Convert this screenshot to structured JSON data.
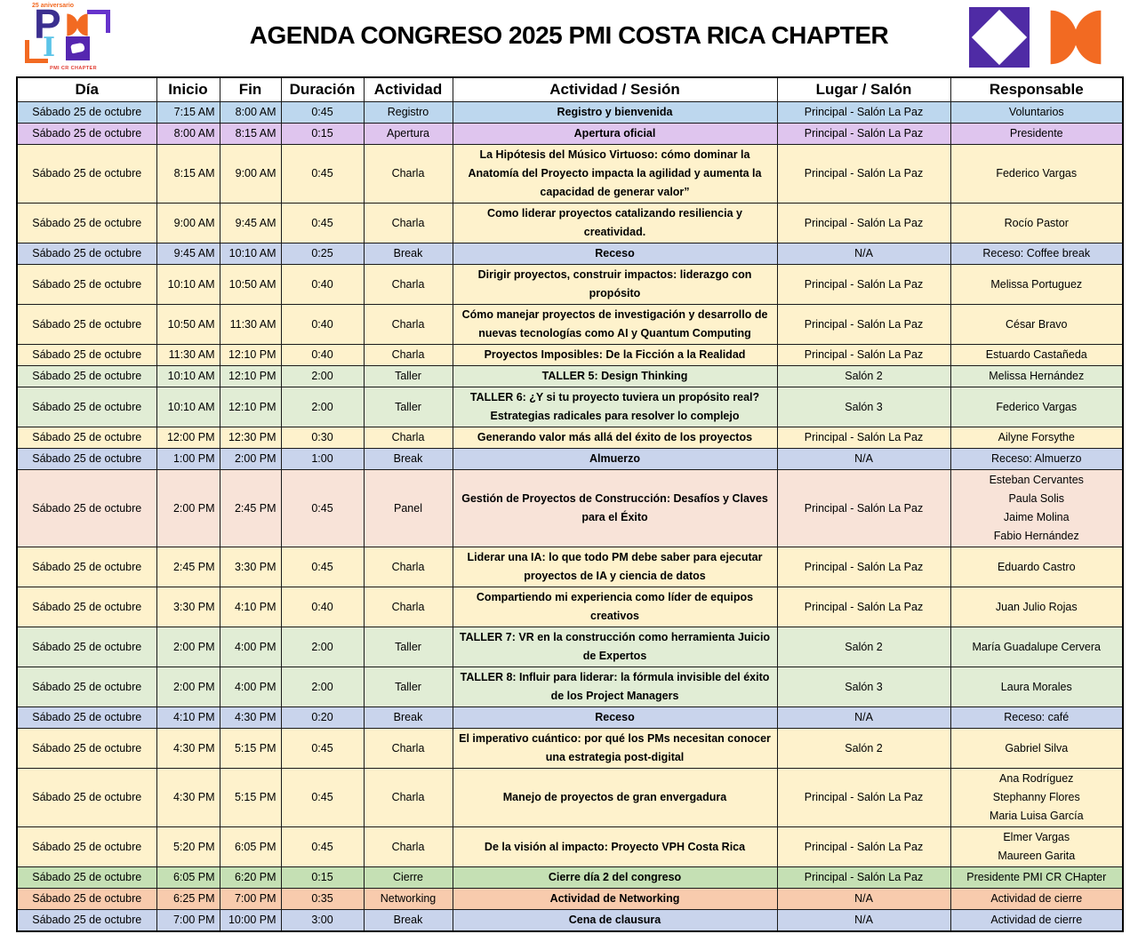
{
  "header": {
    "title": "AGENDA CONGRESO 2025 PMI COSTA RICA CHAPTER",
    "logo_left": {
      "anniversary": "25 aniversario",
      "letter_p": "P",
      "letter_i": "I",
      "chapter": "PMI CR CHAPTER"
    },
    "colors": {
      "brand_purple": "#4F2BA5",
      "brand_orange": "#F26A22"
    }
  },
  "table": {
    "columns": [
      "Día",
      "Inicio",
      "Fin",
      "Duración",
      "Actividad",
      "Actividad / Sesión",
      "Lugar / Salón",
      "Responsable"
    ],
    "row_colors": {
      "registro": "#BDD7EE",
      "apertura": "#DFC5EE",
      "charla": "#FEF2CC",
      "break": "#C9D4EC",
      "taller": "#E1EDD5",
      "panel": "#F8E3D8",
      "cierre": "#C5E0B4",
      "networking": "#F8CBAD"
    },
    "rows": [
      {
        "dia": "Sábado 25 de octubre",
        "inicio": "7:15 AM",
        "fin": "8:00 AM",
        "duracion": "0:45",
        "actividad": "Registro",
        "sesion": "Registro y bienvenida",
        "lugar": "Principal - Salón La Paz",
        "responsable": "Voluntarios",
        "tipo": "registro"
      },
      {
        "dia": "Sábado 25 de octubre",
        "inicio": "8:00 AM",
        "fin": "8:15 AM",
        "duracion": "0:15",
        "actividad": "Apertura",
        "sesion": "Apertura oficial",
        "lugar": "Principal - Salón La Paz",
        "responsable": "Presidente",
        "tipo": "apertura"
      },
      {
        "dia": "Sábado 25 de octubre",
        "inicio": "8:15 AM",
        "fin": "9:00 AM",
        "duracion": "0:45",
        "actividad": "Charla",
        "sesion": "La Hipótesis del Músico Virtuoso: cómo dominar la Anatomía del Proyecto impacta la agilidad y aumenta la capacidad de generar valor”",
        "lugar": "Principal - Salón La Paz",
        "responsable": "Federico Vargas",
        "tipo": "charla"
      },
      {
        "dia": "Sábado 25 de octubre",
        "inicio": "9:00 AM",
        "fin": "9:45 AM",
        "duracion": "0:45",
        "actividad": "Charla",
        "sesion": "Como liderar proyectos catalizando resiliencia y creatividad.",
        "lugar": "Principal - Salón La Paz",
        "responsable": "Rocío Pastor",
        "tipo": "charla"
      },
      {
        "dia": "Sábado 25 de octubre",
        "inicio": "9:45 AM",
        "fin": "10:10 AM",
        "duracion": "0:25",
        "actividad": "Break",
        "sesion": "Receso",
        "lugar": "N/A",
        "responsable": "Receso: Coffee break",
        "tipo": "break"
      },
      {
        "dia": "Sábado 25 de octubre",
        "inicio": "10:10 AM",
        "fin": "10:50 AM",
        "duracion": "0:40",
        "actividad": "Charla",
        "sesion": "Dirigir proyectos, construir impactos: liderazgo con propósito",
        "lugar": "Principal - Salón La Paz",
        "responsable": "Melissa Portuguez",
        "tipo": "charla"
      },
      {
        "dia": "Sábado 25 de octubre",
        "inicio": "10:50 AM",
        "fin": "11:30 AM",
        "duracion": "0:40",
        "actividad": "Charla",
        "sesion": "Cómo manejar proyectos de investigación y desarrollo de nuevas tecnologías como AI y Quantum Computing",
        "lugar": "Principal - Salón La Paz",
        "responsable": "César Bravo",
        "tipo": "charla"
      },
      {
        "dia": "Sábado 25 de octubre",
        "inicio": "11:30 AM",
        "fin": "12:10 PM",
        "duracion": "0:40",
        "actividad": "Charla",
        "sesion": "Proyectos Imposibles: De la Ficción a la Realidad",
        "lugar": "Principal - Salón La Paz",
        "responsable": "Estuardo Castañeda",
        "tipo": "charla"
      },
      {
        "dia": "Sábado 25 de octubre",
        "inicio": "10:10 AM",
        "fin": "12:10 PM",
        "duracion": "2:00",
        "actividad": "Taller",
        "sesion": "TALLER 5: Design Thinking",
        "lugar": "Salón 2",
        "responsable": "Melissa Hernández",
        "tipo": "taller"
      },
      {
        "dia": "Sábado 25 de octubre",
        "inicio": "10:10 AM",
        "fin": "12:10 PM",
        "duracion": "2:00",
        "actividad": "Taller",
        "sesion": "TALLER 6: ¿Y si tu proyecto tuviera un propósito real? Estrategias radicales para resolver lo complejo",
        "lugar": "Salón 3",
        "responsable": "Federico Vargas",
        "tipo": "taller"
      },
      {
        "dia": "Sábado 25 de octubre",
        "inicio": "12:00 PM",
        "fin": "12:30 PM",
        "duracion": "0:30",
        "actividad": "Charla",
        "sesion": "Generando valor más allá del éxito de los proyectos",
        "lugar": "Principal - Salón La Paz",
        "responsable": "Ailyne Forsythe",
        "tipo": "charla"
      },
      {
        "dia": "Sábado 25 de octubre",
        "inicio": "1:00 PM",
        "fin": "2:00 PM",
        "duracion": "1:00",
        "actividad": "Break",
        "sesion": "Almuerzo",
        "lugar": "N/A",
        "responsable": "Receso: Almuerzo",
        "tipo": "break"
      },
      {
        "dia": "Sábado 25 de octubre",
        "inicio": "2:00 PM",
        "fin": "2:45 PM",
        "duracion": "0:45",
        "actividad": "Panel",
        "sesion": "Gestión de Proyectos de Construcción: Desafíos y Claves para el Éxito",
        "lugar": "Principal - Salón La Paz",
        "responsable": "Esteban Cervantes\nPaula Solis\nJaime Molina\nFabio Hernández",
        "tipo": "panel"
      },
      {
        "dia": "Sábado 25 de octubre",
        "inicio": "2:45 PM",
        "fin": "3:30 PM",
        "duracion": "0:45",
        "actividad": "Charla",
        "sesion": "Liderar una IA: lo que todo PM debe saber para ejecutar proyectos de IA y ciencia de datos",
        "lugar": "Principal - Salón La Paz",
        "responsable": "Eduardo Castro",
        "tipo": "charla"
      },
      {
        "dia": "Sábado 25 de octubre",
        "inicio": "3:30 PM",
        "fin": "4:10 PM",
        "duracion": "0:40",
        "actividad": "Charla",
        "sesion": "Compartiendo mi experiencia como líder de equipos creativos",
        "lugar": "Principal - Salón La Paz",
        "responsable": "Juan Julio Rojas",
        "tipo": "charla"
      },
      {
        "dia": "Sábado 25 de octubre",
        "inicio": "2:00 PM",
        "fin": "4:00 PM",
        "duracion": "2:00",
        "actividad": "Taller",
        "sesion": "TALLER 7: VR en la construcción como herramienta Juicio de Expertos",
        "lugar": "Salón 2",
        "responsable": "María Guadalupe Cervera",
        "tipo": "taller"
      },
      {
        "dia": "Sábado 25 de octubre",
        "inicio": "2:00 PM",
        "fin": "4:00 PM",
        "duracion": "2:00",
        "actividad": "Taller",
        "sesion": "TALLER 8: Influir para liderar: la fórmula invisible del éxito de los Project Managers",
        "lugar": "Salón 3",
        "responsable": "Laura Morales",
        "tipo": "taller"
      },
      {
        "dia": "Sábado 25 de octubre",
        "inicio": "4:10 PM",
        "fin": "4:30 PM",
        "duracion": "0:20",
        "actividad": "Break",
        "sesion": "Receso",
        "lugar": "N/A",
        "responsable": "Receso: café",
        "tipo": "break"
      },
      {
        "dia": "Sábado 25 de octubre",
        "inicio": "4:30 PM",
        "fin": "5:15 PM",
        "duracion": "0:45",
        "actividad": "Charla",
        "sesion": "El imperativo cuántico: por qué los PMs necesitan conocer una estrategia post-digital",
        "lugar": "Salón 2",
        "responsable": "Gabriel Silva",
        "tipo": "charla"
      },
      {
        "dia": "Sábado 25 de octubre",
        "inicio": "4:30 PM",
        "fin": "5:15 PM",
        "duracion": "0:45",
        "actividad": "Charla",
        "sesion": "Manejo de proyectos de gran envergadura",
        "lugar": "Principal - Salón La Paz",
        "responsable": "Ana Rodríguez\nStephanny Flores\nMaria Luisa García",
        "tipo": "charla"
      },
      {
        "dia": "Sábado 25 de octubre",
        "inicio": "5:20 PM",
        "fin": "6:05 PM",
        "duracion": "0:45",
        "actividad": "Charla",
        "sesion": "De la visión al impacto: Proyecto VPH Costa Rica",
        "lugar": "Principal - Salón La Paz",
        "responsable": "Elmer Vargas\nMaureen Garita",
        "tipo": "charla"
      },
      {
        "dia": "Sábado 25 de octubre",
        "inicio": "6:05 PM",
        "fin": "6:20 PM",
        "duracion": "0:15",
        "actividad": "Cierre",
        "sesion": "Cierre día 2 del congreso",
        "lugar": "Principal - Salón La Paz",
        "responsable": "Presidente PMI CR CHapter",
        "tipo": "cierre"
      },
      {
        "dia": "Sábado 25 de octubre",
        "inicio": "6:25 PM",
        "fin": "7:00 PM",
        "duracion": "0:35",
        "actividad": "Networking",
        "sesion": "Actividad de Networking",
        "lugar": "N/A",
        "responsable": "Actividad de cierre",
        "tipo": "networking"
      },
      {
        "dia": "Sábado 25 de octubre",
        "inicio": "7:00 PM",
        "fin": "10:00 PM",
        "duracion": "3:00",
        "actividad": "Break",
        "sesion": "Cena de clausura",
        "lugar": "N/A",
        "responsable": "Actividad de cierre",
        "tipo": "break"
      }
    ]
  }
}
